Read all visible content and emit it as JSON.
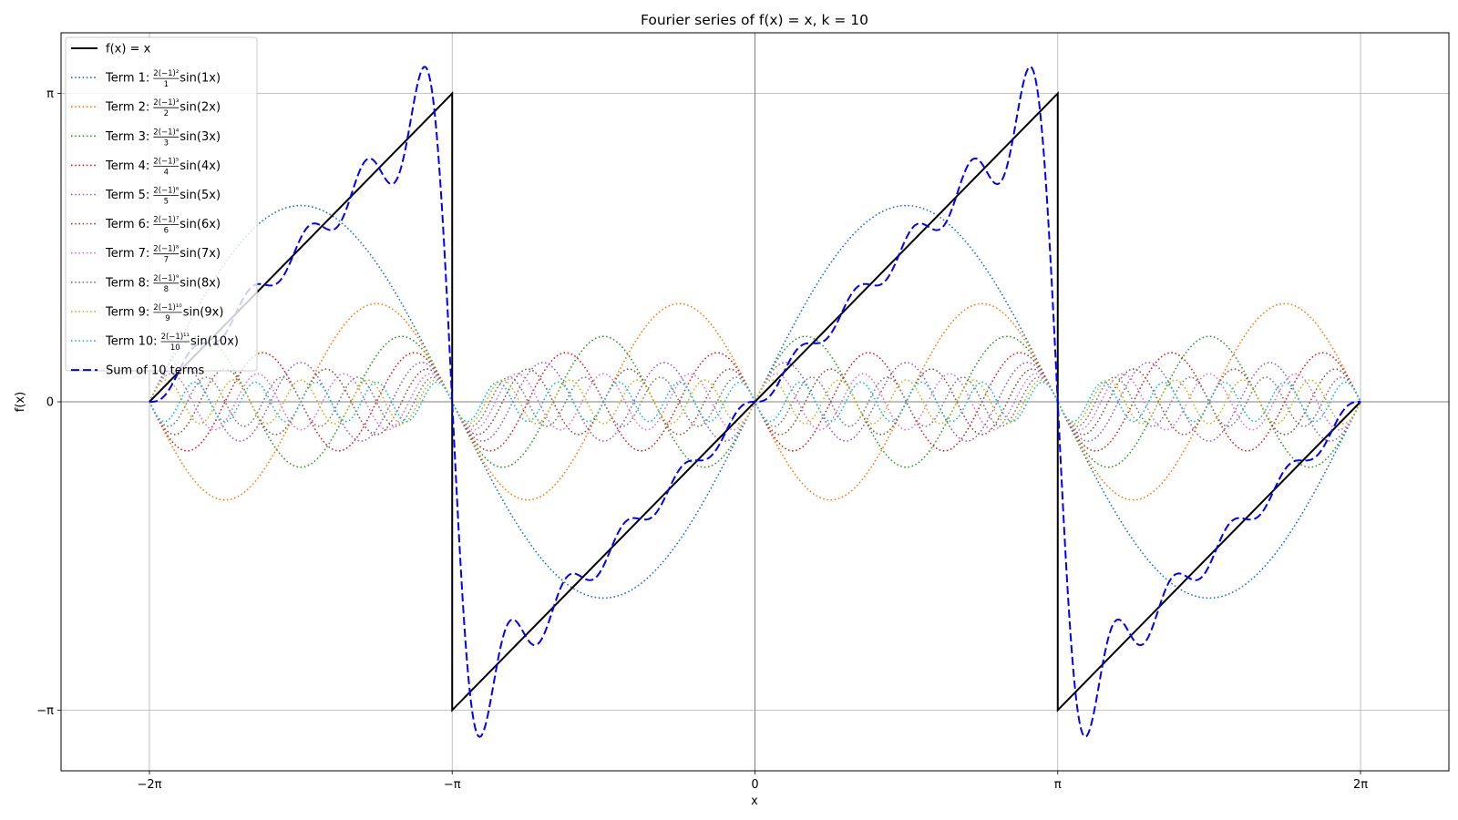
{
  "chart_data": {
    "type": "line",
    "title": "Fourier series of f(x) = x, k = 10",
    "xlabel": "x",
    "ylabel": "f(x)",
    "xlim": [
      -7.2,
      7.2
    ],
    "ylim": [
      -3.76,
      3.76
    ],
    "grid": true,
    "legend_position": "upper-left",
    "x_ticks": [
      {
        "value": -6.283185307,
        "label": "−2π"
      },
      {
        "value": -3.141592654,
        "label": "−π"
      },
      {
        "value": 0,
        "label": "0"
      },
      {
        "value": 3.141592654,
        "label": "π"
      },
      {
        "value": 6.283185307,
        "label": "2π"
      }
    ],
    "y_ticks": [
      {
        "value": 3.141592654,
        "label": "π"
      },
      {
        "value": 0,
        "label": "0"
      },
      {
        "value": -3.141592654,
        "label": "−π"
      }
    ],
    "x_range": [
      -6.283185307,
      6.283185307
    ],
    "k": 10,
    "series": [
      {
        "name": "f(x) = x",
        "color": "#000000",
        "style": "solid",
        "formula": "sawtooth"
      },
      {
        "name": "Term 1:",
        "n": 1,
        "frac_num": "2(−1)²",
        "frac_den": "1",
        "sin_text": "sin(1x)",
        "color": "#1f77b4",
        "style": "dotted"
      },
      {
        "name": "Term 2:",
        "n": 2,
        "frac_num": "2(−1)³",
        "frac_den": "2",
        "sin_text": "sin(2x)",
        "color": "#ff7f0e",
        "style": "dotted"
      },
      {
        "name": "Term 3:",
        "n": 3,
        "frac_num": "2(−1)⁴",
        "frac_den": "3",
        "sin_text": "sin(3x)",
        "color": "#2ca02c",
        "style": "dotted"
      },
      {
        "name": "Term 4:",
        "n": 4,
        "frac_num": "2(−1)⁵",
        "frac_den": "4",
        "sin_text": "sin(4x)",
        "color": "#d62728",
        "style": "dotted"
      },
      {
        "name": "Term 5:",
        "n": 5,
        "frac_num": "2(−1)⁶",
        "frac_den": "5",
        "sin_text": "sin(5x)",
        "color": "#9467bd",
        "style": "dotted"
      },
      {
        "name": "Term 6:",
        "n": 6,
        "frac_num": "2(−1)⁷",
        "frac_den": "6",
        "sin_text": "sin(6x)",
        "color": "#8c564b",
        "style": "dotted"
      },
      {
        "name": "Term 7:",
        "n": 7,
        "frac_num": "2(−1)⁸",
        "frac_den": "7",
        "sin_text": "sin(7x)",
        "color": "#e377c2",
        "style": "dotted"
      },
      {
        "name": "Term 8:",
        "n": 8,
        "frac_num": "2(−1)⁹",
        "frac_den": "8",
        "sin_text": "sin(8x)",
        "color": "#7f7f7f",
        "style": "dotted"
      },
      {
        "name": "Term 9:",
        "n": 9,
        "frac_num": "2(−1)¹⁰",
        "frac_den": "9",
        "sin_text": "sin(9x)",
        "color": "#bcbd22",
        "style": "dotted"
      },
      {
        "name": "Term 10:",
        "n": 10,
        "frac_num": "2(−1)¹¹",
        "frac_den": "10",
        "sin_text": "sin(10x)",
        "color": "#17becf",
        "style": "dotted"
      },
      {
        "name": "Sum of 10 terms",
        "color": "#0000ff",
        "style": "dashed",
        "formula": "partial_sum"
      }
    ]
  }
}
